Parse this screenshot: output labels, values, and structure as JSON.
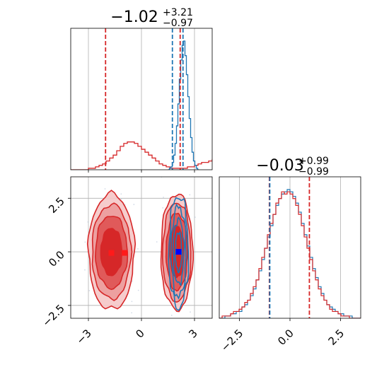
{
  "colors": {
    "blue": "#1f77b4",
    "red": "#d62728",
    "grid": "#b0b0b0",
    "red_point": "#ff1a1a",
    "blue_point": "#0000ff"
  },
  "chart_data": [
    {
      "id": "marginal_param1",
      "type": "histogram",
      "title": {
        "main": "−1.02",
        "sup": "+3.21",
        "sub": "−0.97"
      },
      "xlim": [
        -4.0,
        4.0
      ],
      "grid": true,
      "series": [
        {
          "color": "#d62728",
          "bin_start": -4.0,
          "bin_width": 0.2,
          "counts": [
            0,
            0,
            0,
            0,
            0,
            1,
            1,
            2,
            3,
            4,
            6,
            8,
            10,
            13,
            16,
            18,
            19,
            19,
            18,
            16,
            14,
            12,
            10,
            8,
            6,
            4,
            3,
            2,
            1,
            1,
            1,
            1,
            1,
            2,
            2,
            3,
            4,
            5,
            5,
            6,
            7,
            7,
            8,
            8,
            7,
            6,
            5,
            4,
            3,
            2,
            1,
            1,
            0,
            0,
            0,
            0,
            0,
            0,
            0,
            0
          ]
        },
        {
          "color": "#1f77b4",
          "bin_start": 1.5,
          "bin_width": 0.08,
          "counts": [
            0,
            1,
            2,
            5,
            10,
            18,
            30,
            45,
            62,
            75,
            85,
            88,
            78,
            65,
            50,
            35,
            22,
            12,
            6,
            3,
            1,
            0
          ]
        }
      ],
      "quantile_lines": [
        {
          "x": -2.03,
          "color": "#d62728"
        },
        {
          "x": 2.19,
          "color": "#d62728"
        },
        {
          "x": 1.75,
          "color": "#1f77b4"
        },
        {
          "x": 2.35,
          "color": "#1f77b4"
        }
      ]
    },
    {
      "id": "marginal_param2",
      "type": "histogram",
      "title": {
        "main": "−0.03",
        "sup": "+0.99",
        "sub": "−0.99"
      },
      "xlim": [
        -3.5,
        3.5
      ],
      "xticks": [
        -2.5,
        0.0,
        2.5
      ],
      "xtick_labels": [
        "−2.5",
        "0.0",
        "2.5"
      ],
      "grid": true,
      "series": [
        {
          "color": "#1f77b4",
          "bin_start": -3.5,
          "bin_width": 0.14,
          "counts": [
            0,
            0,
            1,
            1,
            2,
            2,
            3,
            3,
            5,
            6,
            8,
            10,
            13,
            17,
            21,
            26,
            31,
            36,
            41,
            46,
            50,
            53,
            55,
            56,
            57,
            56,
            54,
            51,
            47,
            42,
            37,
            32,
            27,
            22,
            18,
            14,
            11,
            8,
            6,
            5,
            4,
            3,
            2,
            2,
            1,
            1,
            1,
            0,
            0,
            0
          ]
        },
        {
          "color": "#d62728",
          "bin_start": -3.5,
          "bin_width": 0.14,
          "counts": [
            0,
            1,
            1,
            1,
            2,
            3,
            3,
            4,
            5,
            7,
            8,
            11,
            14,
            17,
            22,
            27,
            31,
            37,
            42,
            46,
            51,
            53,
            56,
            55,
            56,
            55,
            53,
            50,
            46,
            41,
            36,
            31,
            26,
            21,
            17,
            13,
            10,
            8,
            6,
            4,
            3,
            3,
            2,
            1,
            1,
            1,
            0,
            0,
            0,
            0
          ]
        }
      ],
      "quantile_lines": [
        {
          "x": -1.02,
          "color": "#d62728"
        },
        {
          "x": 0.96,
          "color": "#d62728"
        },
        {
          "x": -1.0,
          "color": "#1f77b4"
        }
      ]
    },
    {
      "id": "joint_param1_param2",
      "type": "contour",
      "xlim": [
        -4.0,
        4.0
      ],
      "ylim": [
        -3.1,
        3.5
      ],
      "xticks": [
        -3,
        0,
        3
      ],
      "xtick_labels": [
        "−3",
        "0",
        "3"
      ],
      "yticks": [
        -2.5,
        0.0,
        2.5
      ],
      "ytick_labels": [
        "−2.5",
        "0.0",
        "2.5"
      ],
      "grid": true,
      "red_modes": [
        {
          "cx": -1.7,
          "cy": 0.0,
          "levels": [
            [
              1.3,
              2.7
            ],
            [
              1.1,
              2.2
            ],
            [
              0.9,
              1.7
            ],
            [
              0.6,
              1.1
            ]
          ]
        },
        {
          "cx": 2.0,
          "cy": 0.0,
          "levels": [
            [
              0.9,
              2.7
            ],
            [
              0.8,
              2.3
            ],
            [
              0.6,
              1.8
            ],
            [
              0.4,
              1.2
            ]
          ]
        }
      ],
      "blue_mode": {
        "cx": 2.1,
        "cy": 0.0,
        "levels": [
          [
            0.55,
            2.6
          ],
          [
            0.42,
            2.1
          ],
          [
            0.3,
            1.5
          ],
          [
            0.18,
            0.9
          ]
        ]
      },
      "points": [
        {
          "x": -1.7,
          "y": -0.05,
          "color": "#ff1a1a"
        },
        {
          "x": -0.95,
          "y": -0.05,
          "color": "#ff1a1a"
        },
        {
          "x": 2.1,
          "y": 0.0,
          "color": "#0000ff"
        }
      ]
    }
  ]
}
